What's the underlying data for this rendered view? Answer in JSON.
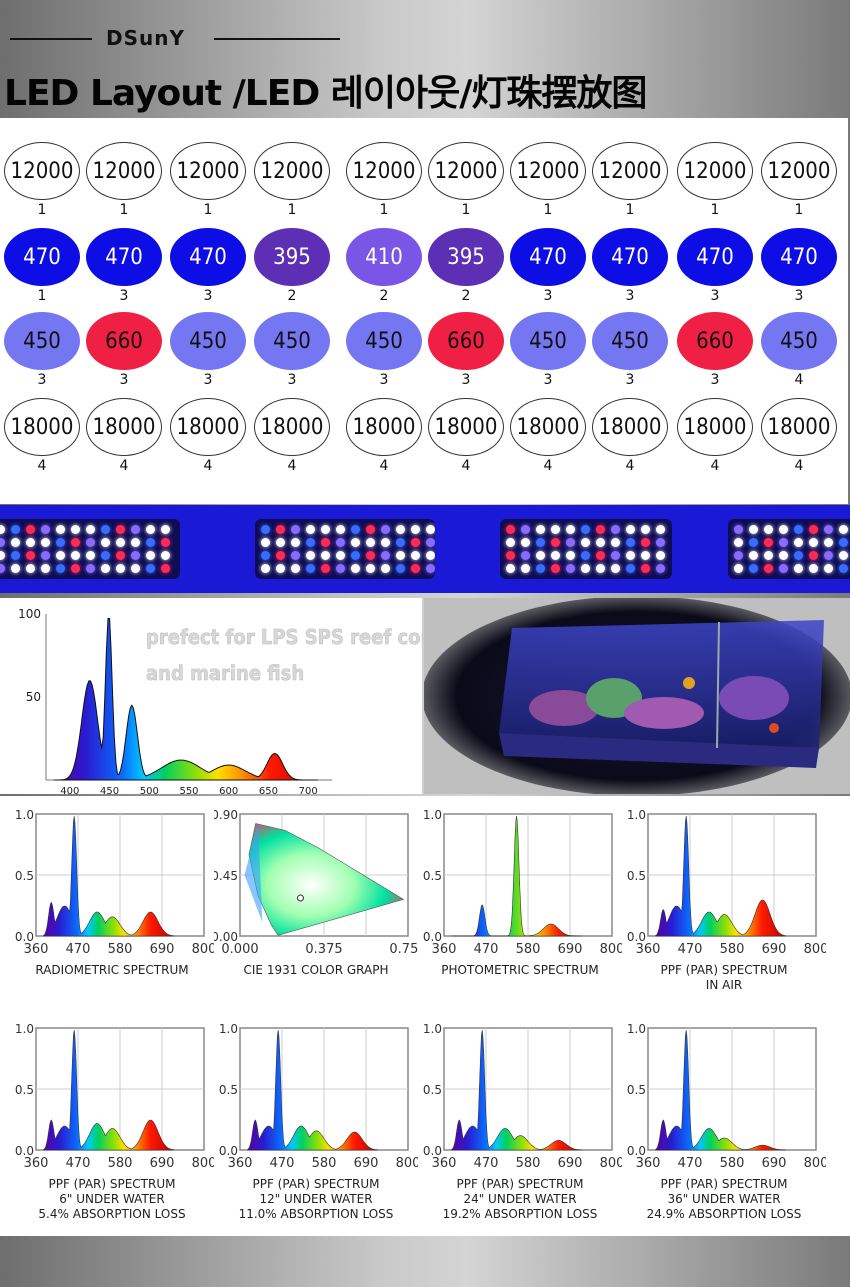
{
  "brand": "DSunY",
  "title": "LED Layout /LED 레이아웃/灯珠摆放图",
  "led_layout": {
    "columns": [
      {
        "cells": [
          {
            "label": "12000",
            "type": "wht",
            "count": "1"
          },
          {
            "label": "470",
            "type": "c470",
            "count": "1"
          },
          {
            "label": "450",
            "type": "c450",
            "count": "3"
          },
          {
            "label": "18000",
            "type": "wht",
            "count": "4"
          }
        ]
      },
      {
        "cells": [
          {
            "label": "12000",
            "type": "wht",
            "count": "1"
          },
          {
            "label": "470",
            "type": "c470",
            "count": "3"
          },
          {
            "label": "660",
            "type": "c660",
            "count": "3"
          },
          {
            "label": "18000",
            "type": "wht",
            "count": "4"
          }
        ]
      },
      {
        "cells": [
          {
            "label": "12000",
            "type": "wht",
            "count": "1"
          },
          {
            "label": "470",
            "type": "c470",
            "count": "3"
          },
          {
            "label": "450",
            "type": "c450",
            "count": "3"
          },
          {
            "label": "18000",
            "type": "wht",
            "count": "4"
          }
        ]
      },
      {
        "cells": [
          {
            "label": "12000",
            "type": "wht",
            "count": "1"
          },
          {
            "label": "395",
            "type": "c395",
            "count": "2"
          },
          {
            "label": "450",
            "type": "c450",
            "count": "3"
          },
          {
            "label": "18000",
            "type": "wht",
            "count": "4"
          }
        ]
      },
      {
        "cells": [
          {
            "label": "12000",
            "type": "wht",
            "count": "1"
          },
          {
            "label": "410",
            "type": "c410",
            "count": "2"
          },
          {
            "label": "450",
            "type": "c450",
            "count": "3"
          },
          {
            "label": "18000",
            "type": "wht",
            "count": "4"
          }
        ]
      },
      {
        "cells": [
          {
            "label": "12000",
            "type": "wht",
            "count": "1"
          },
          {
            "label": "395",
            "type": "c395",
            "count": "2"
          },
          {
            "label": "660",
            "type": "c660",
            "count": "3"
          },
          {
            "label": "18000",
            "type": "wht",
            "count": "4"
          }
        ]
      },
      {
        "cells": [
          {
            "label": "12000",
            "type": "wht",
            "count": "1"
          },
          {
            "label": "470",
            "type": "c470",
            "count": "3"
          },
          {
            "label": "450",
            "type": "c450",
            "count": "3"
          },
          {
            "label": "18000",
            "type": "wht",
            "count": "4"
          }
        ]
      },
      {
        "cells": [
          {
            "label": "12000",
            "type": "wht",
            "count": "1"
          },
          {
            "label": "470",
            "type": "c470",
            "count": "3"
          },
          {
            "label": "450",
            "type": "c450",
            "count": "3"
          },
          {
            "label": "18000",
            "type": "wht",
            "count": "4"
          }
        ]
      },
      {
        "cells": [
          {
            "label": "12000",
            "type": "wht",
            "count": "1"
          },
          {
            "label": "470",
            "type": "c470",
            "count": "3"
          },
          {
            "label": "660",
            "type": "c660",
            "count": "3"
          },
          {
            "label": "18000",
            "type": "wht",
            "count": "4"
          }
        ]
      },
      {
        "cells": [
          {
            "label": "12000",
            "type": "wht",
            "count": "1"
          },
          {
            "label": "470",
            "type": "c470",
            "count": "3"
          },
          {
            "label": "450",
            "type": "c450",
            "count": "4"
          },
          {
            "label": "18000",
            "type": "wht",
            "count": "4"
          }
        ]
      }
    ]
  },
  "main_spectrum": {
    "caption_line1": "prefect for LPS SPS reef coral",
    "caption_line2": "and marine fish",
    "y_ticks": [
      "100",
      "50"
    ],
    "x_ticks": [
      "400",
      "450",
      "500",
      "550",
      "600",
      "650",
      "700"
    ]
  },
  "chart_data": [
    {
      "type": "area",
      "title": "RADIOMETRIC SPECTRUM",
      "x_ticks": [
        "360",
        "470",
        "580",
        "690",
        "800"
      ],
      "y_ticks": [
        "1.0",
        "0.5",
        "0.0"
      ],
      "xlim": [
        360,
        800
      ],
      "ylim": [
        0,
        1
      ],
      "peaks": [
        {
          "x": 400,
          "y": 0.28
        },
        {
          "x": 435,
          "y": 0.25
        },
        {
          "x": 460,
          "y": 1.0
        },
        {
          "x": 520,
          "y": 0.2
        },
        {
          "x": 560,
          "y": 0.16
        },
        {
          "x": 660,
          "y": 0.2
        }
      ]
    },
    {
      "type": "scatter",
      "title": "CIE 1931 COLOR GRAPH",
      "x_ticks": [
        "0.000",
        "0.375",
        "0.750"
      ],
      "y_ticks": [
        "0.90",
        "0.45",
        "0.00"
      ],
      "xlim": [
        0,
        0.75
      ],
      "ylim": [
        0,
        0.9
      ]
    },
    {
      "type": "area",
      "title": "PHOTOMETRIC SPECTRUM",
      "x_ticks": [
        "360",
        "470",
        "580",
        "690",
        "800"
      ],
      "y_ticks": [
        "1.0",
        "0.5",
        "0.0"
      ],
      "xlim": [
        360,
        800
      ],
      "ylim": [
        0,
        1
      ],
      "peaks": [
        {
          "x": 460,
          "y": 0.26
        },
        {
          "x": 550,
          "y": 1.0
        },
        {
          "x": 640,
          "y": 0.1
        }
      ]
    },
    {
      "type": "area",
      "title": "PPF (PAR) SPECTRUM\nIN AIR",
      "x_ticks": [
        "360",
        "470",
        "580",
        "690",
        "800"
      ],
      "y_ticks": [
        "1.0",
        "0.5",
        "0.0"
      ],
      "xlim": [
        360,
        800
      ],
      "ylim": [
        0,
        1
      ],
      "peaks": [
        {
          "x": 400,
          "y": 0.22
        },
        {
          "x": 435,
          "y": 0.25
        },
        {
          "x": 460,
          "y": 1.0
        },
        {
          "x": 520,
          "y": 0.2
        },
        {
          "x": 560,
          "y": 0.18
        },
        {
          "x": 660,
          "y": 0.3
        }
      ]
    },
    {
      "type": "area",
      "title": "PPF (PAR) SPECTRUM\n6\" UNDER WATER\n5.4% ABSORPTION LOSS",
      "x_ticks": [
        "360",
        "470",
        "580",
        "690",
        "800"
      ],
      "y_ticks": [
        "1.0",
        "0.5",
        "0.0"
      ],
      "xlim": [
        360,
        800
      ],
      "ylim": [
        0,
        1
      ],
      "peaks": [
        {
          "x": 400,
          "y": 0.25
        },
        {
          "x": 435,
          "y": 0.2
        },
        {
          "x": 460,
          "y": 1.0
        },
        {
          "x": 520,
          "y": 0.22
        },
        {
          "x": 560,
          "y": 0.18
        },
        {
          "x": 660,
          "y": 0.25
        }
      ]
    },
    {
      "type": "area",
      "title": "PPF (PAR) SPECTRUM\n12\" UNDER WATER\n11.0% ABSORPTION LOSS",
      "x_ticks": [
        "360",
        "470",
        "580",
        "690",
        "800"
      ],
      "y_ticks": [
        "1.0",
        "0.5",
        "0.0"
      ],
      "xlim": [
        360,
        800
      ],
      "ylim": [
        0,
        1
      ],
      "peaks": [
        {
          "x": 400,
          "y": 0.25
        },
        {
          "x": 435,
          "y": 0.2
        },
        {
          "x": 460,
          "y": 1.0
        },
        {
          "x": 520,
          "y": 0.2
        },
        {
          "x": 560,
          "y": 0.16
        },
        {
          "x": 660,
          "y": 0.15
        }
      ]
    },
    {
      "type": "area",
      "title": "PPF (PAR) SPECTRUM\n24\" UNDER WATER\n19.2% ABSORPTION LOSS",
      "x_ticks": [
        "360",
        "470",
        "580",
        "690",
        "800"
      ],
      "y_ticks": [
        "1.0",
        "0.5",
        "0.0"
      ],
      "xlim": [
        360,
        800
      ],
      "ylim": [
        0,
        1
      ],
      "peaks": [
        {
          "x": 400,
          "y": 0.25
        },
        {
          "x": 435,
          "y": 0.2
        },
        {
          "x": 460,
          "y": 1.0
        },
        {
          "x": 520,
          "y": 0.18
        },
        {
          "x": 560,
          "y": 0.12
        },
        {
          "x": 660,
          "y": 0.08
        }
      ]
    },
    {
      "type": "area",
      "title": "PPF (PAR) SPECTRUM\n36\" UNDER WATER\n24.9% ABSORPTION LOSS",
      "x_ticks": [
        "360",
        "470",
        "580",
        "690",
        "800"
      ],
      "y_ticks": [
        "1.0",
        "0.5",
        "0.0"
      ],
      "xlim": [
        360,
        800
      ],
      "ylim": [
        0,
        1
      ],
      "peaks": [
        {
          "x": 400,
          "y": 0.25
        },
        {
          "x": 435,
          "y": 0.2
        },
        {
          "x": 460,
          "y": 1.0
        },
        {
          "x": 520,
          "y": 0.18
        },
        {
          "x": 560,
          "y": 0.1
        },
        {
          "x": 660,
          "y": 0.04
        }
      ]
    }
  ]
}
